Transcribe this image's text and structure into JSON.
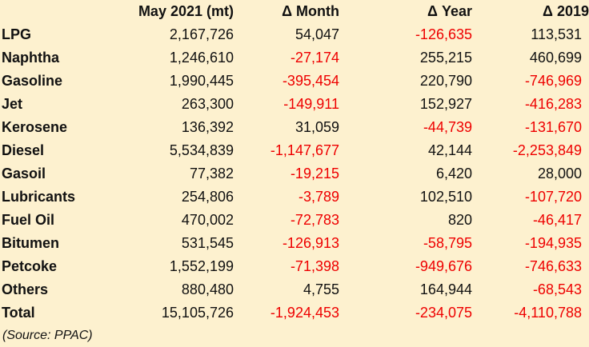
{
  "table": {
    "headers": [
      "",
      "May 2021 (mt)",
      "Δ Month",
      "Δ Year",
      "Δ 2019"
    ],
    "rows": [
      {
        "product": "LPG",
        "cells": [
          "2,167,726",
          "54,047",
          "-126,635",
          "113,531"
        ]
      },
      {
        "product": "Naphtha",
        "cells": [
          "1,246,610",
          "-27,174",
          "255,215",
          "460,699"
        ]
      },
      {
        "product": "Gasoline",
        "cells": [
          "1,990,445",
          "-395,454",
          "220,790",
          "-746,969"
        ]
      },
      {
        "product": "Jet",
        "cells": [
          "263,300",
          "-149,911",
          "152,927",
          "-416,283"
        ]
      },
      {
        "product": "Kerosene",
        "cells": [
          "136,392",
          "31,059",
          "-44,739",
          "-131,670"
        ]
      },
      {
        "product": "Diesel",
        "cells": [
          "5,534,839",
          "-1,147,677",
          "42,144",
          "-2,253,849"
        ]
      },
      {
        "product": "Gasoil",
        "cells": [
          "77,382",
          "-19,215",
          "6,420",
          "28,000"
        ]
      },
      {
        "product": "Lubricants",
        "cells": [
          "254,806",
          "-3,789",
          "102,510",
          "-107,720"
        ]
      },
      {
        "product": "Fuel Oil",
        "cells": [
          "470,002",
          "-72,783",
          "820",
          "-46,417"
        ]
      },
      {
        "product": "Bitumen",
        "cells": [
          "531,545",
          "-126,913",
          "-58,795",
          "-194,935"
        ]
      },
      {
        "product": "Petcoke",
        "cells": [
          "1,552,199",
          "-71,398",
          "-949,676",
          "-746,633"
        ]
      },
      {
        "product": "Others",
        "cells": [
          "880,480",
          "4,755",
          "164,944",
          "-68,543"
        ]
      },
      {
        "product": "Total",
        "cells": [
          "15,105,726",
          "-1,924,453",
          "-234,075",
          "-4,110,788"
        ]
      }
    ]
  },
  "source": "(Source: PPAC)",
  "colors": {
    "background": "#fdf1cf",
    "text": "#111111",
    "negative": "#ee0000"
  }
}
